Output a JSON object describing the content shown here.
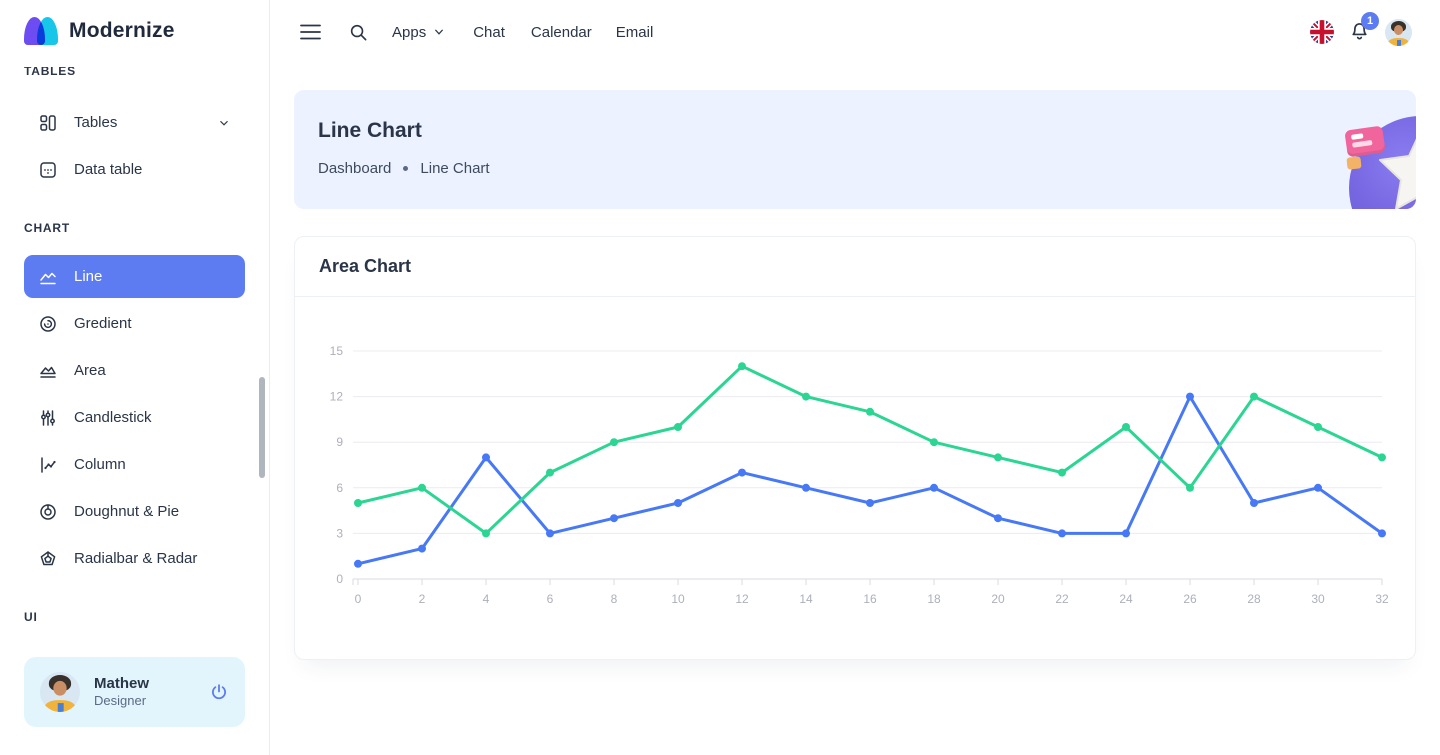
{
  "brand": {
    "name": "Modernize"
  },
  "sidebar": {
    "sections": [
      {
        "label": "TABLES",
        "items": [
          {
            "label": "Tables",
            "icon": "tables-icon",
            "expandable": true
          },
          {
            "label": "Data table",
            "icon": "data-table-icon"
          }
        ]
      },
      {
        "label": "CHART",
        "items": [
          {
            "label": "Line",
            "icon": "line-chart-icon",
            "active": true
          },
          {
            "label": "Gredient",
            "icon": "gradient-chart-icon"
          },
          {
            "label": "Area",
            "icon": "area-chart-icon"
          },
          {
            "label": "Candlestick",
            "icon": "candlestick-chart-icon"
          },
          {
            "label": "Column",
            "icon": "column-chart-icon"
          },
          {
            "label": "Doughnut & Pie",
            "icon": "doughnut-pie-chart-icon"
          },
          {
            "label": "Radialbar & Radar",
            "icon": "radialbar-radar-chart-icon"
          }
        ]
      },
      {
        "label": "UI",
        "items": []
      }
    ],
    "profile": {
      "name": "Mathew",
      "role": "Designer"
    }
  },
  "header": {
    "nav": {
      "apps": "Apps",
      "chat": "Chat",
      "calendar": "Calendar",
      "email": "Email"
    },
    "notification_count": "1"
  },
  "breadcrumb": {
    "title": "Line Chart",
    "items": [
      "Dashboard",
      "Line Chart"
    ]
  },
  "card": {
    "title": "Area Chart"
  },
  "icons": {
    "gear": "⚙",
    "menu": "hamburger-lines",
    "search": "magnifier",
    "bell": "bell",
    "power": "power-symbol",
    "flag": "uk-flag",
    "chevron": "chevron-down"
  },
  "colors": {
    "primary": "#5D7CF2",
    "primary_light": "#ECF2FF",
    "secondary_light": "#E2F5FD",
    "text_dark": "#2A3547",
    "text_gray": "#5A6A85",
    "axis_label": "#ADB0BB",
    "gridline": "#ECECF0",
    "line_green": "#2BD592",
    "line_blue": "#4778F5"
  },
  "chart_data": {
    "type": "line",
    "title": "Area Chart",
    "x": [
      0,
      2,
      4,
      6,
      8,
      10,
      12,
      14,
      16,
      18,
      20,
      22,
      24,
      26,
      28,
      30,
      32
    ],
    "series": [
      {
        "name": "series-blue",
        "color": "#4778F5",
        "values": [
          1,
          2,
          8,
          3,
          4,
          5,
          7,
          6,
          5,
          6,
          4,
          3,
          3,
          12,
          5,
          6,
          3
        ]
      },
      {
        "name": "series-green",
        "color": "#2BD592",
        "values": [
          5,
          6,
          3,
          7,
          9,
          10,
          14,
          12,
          11,
          9,
          8,
          7,
          10,
          6,
          12,
          10,
          8
        ]
      }
    ],
    "ylim": [
      0,
      15
    ],
    "yticks": [
      0,
      3,
      6,
      9,
      12,
      15
    ],
    "xlabel": "",
    "ylabel": "",
    "grid": true,
    "legend": "none",
    "markers": true
  }
}
